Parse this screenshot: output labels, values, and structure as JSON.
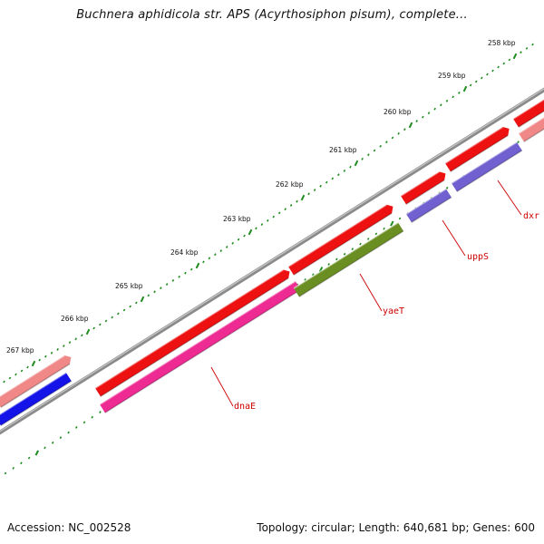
{
  "header": {
    "title": "Buchnera aphidicola str. APS (Acyrthosiphon pisum), complete..."
  },
  "footer": {
    "accession": "Accession: NC_002528",
    "summary": "Topology: circular; Length: 640,681 bp; Genes: 600"
  },
  "ruler": {
    "ticks": [
      {
        "label": "258 kbp"
      },
      {
        "label": "259 kbp"
      },
      {
        "label": "260 kbp"
      },
      {
        "label": "261 kbp"
      },
      {
        "label": "262 kbp"
      },
      {
        "label": "263 kbp"
      },
      {
        "label": "264 kbp"
      },
      {
        "label": "265 kbp"
      },
      {
        "label": "266 kbp"
      },
      {
        "label": "267 kbp"
      }
    ]
  },
  "colors": {
    "backbone": "#8a8a8a",
    "ruler": "#1e8c1e",
    "cds_forward": "#ee1111",
    "cds_forward_light": "#f08888",
    "gene_magenta": "#ee2a93",
    "gene_olive": "#6b8e23",
    "gene_purple": "#7060d0",
    "gene_blue": "#1414e8",
    "label_red": "#cc0000"
  },
  "genes": [
    {
      "name": "dnaE",
      "color": "gene_magenta"
    },
    {
      "name": "yaeT",
      "color": "gene_olive"
    },
    {
      "name": "uppS",
      "color": "gene_purple"
    },
    {
      "name": "dxr",
      "color": "gene_purple"
    }
  ]
}
